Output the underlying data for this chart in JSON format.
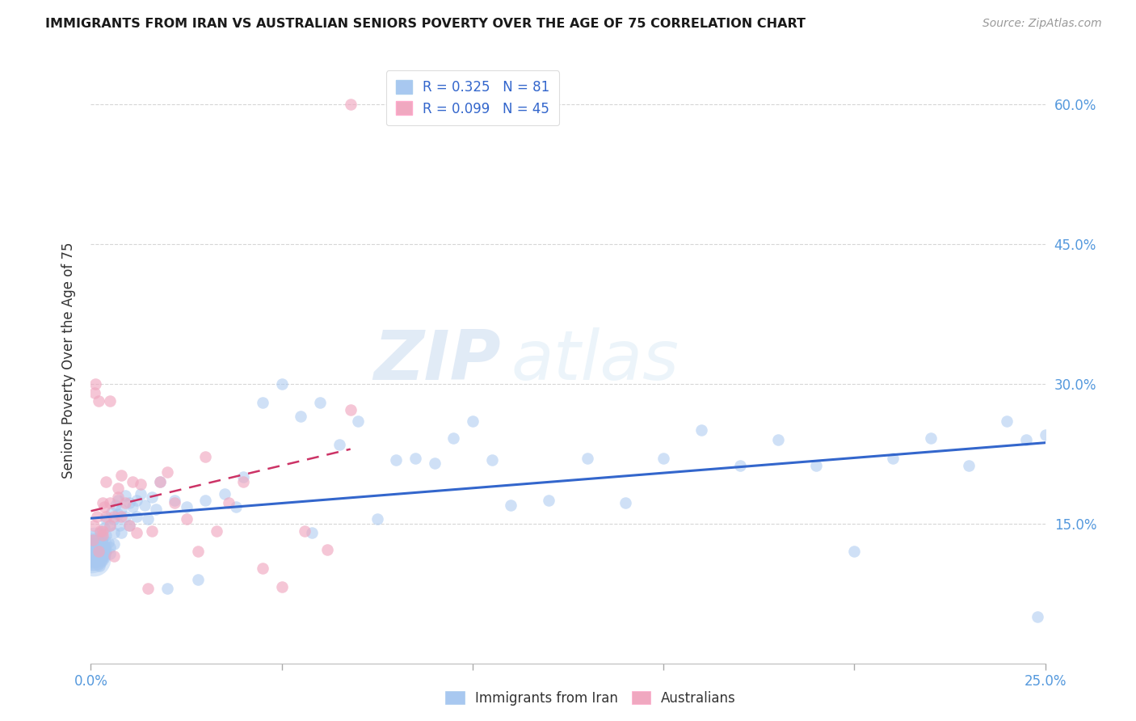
{
  "title": "IMMIGRANTS FROM IRAN VS AUSTRALIAN SENIORS POVERTY OVER THE AGE OF 75 CORRELATION CHART",
  "source": "Source: ZipAtlas.com",
  "ylabel_label": "Seniors Poverty Over the Age of 75",
  "legend_label1": "Immigrants from Iran",
  "legend_label2": "Australians",
  "R1": 0.325,
  "N1": 81,
  "R2": 0.099,
  "N2": 45,
  "xmin": 0.0,
  "xmax": 0.25,
  "ymin": 0.0,
  "ymax": 0.65,
  "yticks": [
    0.15,
    0.3,
    0.45,
    0.6
  ],
  "ytick_labels": [
    "15.0%",
    "30.0%",
    "45.0%",
    "60.0%"
  ],
  "xticks": [
    0.0,
    0.05,
    0.1,
    0.15,
    0.2,
    0.25
  ],
  "xtick_labels": [
    "0.0%",
    "",
    "",
    "",
    "",
    "25.0%"
  ],
  "color_blue": "#A8C8F0",
  "color_pink": "#F0A8C0",
  "line_blue": "#3366CC",
  "line_pink": "#CC3366",
  "watermark_zip": "ZIP",
  "watermark_atlas": "atlas",
  "background_color": "#FFFFFF",
  "grid_color": "#CCCCCC",
  "blue_scatter_x": [
    0.0008,
    0.001,
    0.0012,
    0.0015,
    0.002,
    0.002,
    0.0022,
    0.0025,
    0.003,
    0.003,
    0.0032,
    0.0035,
    0.004,
    0.004,
    0.004,
    0.0045,
    0.005,
    0.005,
    0.005,
    0.0055,
    0.006,
    0.006,
    0.006,
    0.0065,
    0.007,
    0.007,
    0.0075,
    0.008,
    0.008,
    0.009,
    0.009,
    0.01,
    0.01,
    0.011,
    0.012,
    0.012,
    0.013,
    0.014,
    0.015,
    0.016,
    0.017,
    0.018,
    0.02,
    0.022,
    0.025,
    0.028,
    0.03,
    0.035,
    0.038,
    0.04,
    0.045,
    0.05,
    0.055,
    0.058,
    0.06,
    0.065,
    0.07,
    0.075,
    0.08,
    0.085,
    0.09,
    0.095,
    0.1,
    0.105,
    0.11,
    0.12,
    0.13,
    0.14,
    0.15,
    0.16,
    0.17,
    0.18,
    0.19,
    0.2,
    0.21,
    0.22,
    0.23,
    0.24,
    0.245,
    0.248,
    0.25
  ],
  "blue_scatter_y": [
    0.115,
    0.12,
    0.11,
    0.125,
    0.13,
    0.118,
    0.105,
    0.14,
    0.135,
    0.115,
    0.125,
    0.145,
    0.138,
    0.12,
    0.155,
    0.13,
    0.148,
    0.125,
    0.118,
    0.162,
    0.14,
    0.155,
    0.128,
    0.17,
    0.16,
    0.175,
    0.148,
    0.165,
    0.14,
    0.158,
    0.18,
    0.172,
    0.148,
    0.168,
    0.175,
    0.158,
    0.182,
    0.17,
    0.155,
    0.178,
    0.165,
    0.195,
    0.08,
    0.175,
    0.168,
    0.09,
    0.175,
    0.182,
    0.168,
    0.2,
    0.28,
    0.3,
    0.265,
    0.14,
    0.28,
    0.235,
    0.26,
    0.155,
    0.218,
    0.22,
    0.215,
    0.242,
    0.26,
    0.218,
    0.17,
    0.175,
    0.22,
    0.172,
    0.22,
    0.25,
    0.212,
    0.24,
    0.212,
    0.12,
    0.22,
    0.242,
    0.212,
    0.26,
    0.24,
    0.05,
    0.245
  ],
  "pink_scatter_x": [
    0.0005,
    0.0008,
    0.001,
    0.0012,
    0.0015,
    0.002,
    0.002,
    0.0025,
    0.003,
    0.003,
    0.003,
    0.0035,
    0.004,
    0.004,
    0.005,
    0.005,
    0.005,
    0.006,
    0.006,
    0.007,
    0.007,
    0.008,
    0.008,
    0.009,
    0.01,
    0.011,
    0.012,
    0.013,
    0.015,
    0.016,
    0.018,
    0.02,
    0.022,
    0.025,
    0.028,
    0.03,
    0.033,
    0.036,
    0.04,
    0.045,
    0.05,
    0.056,
    0.062,
    0.068,
    0.068
  ],
  "pink_scatter_y": [
    0.132,
    0.148,
    0.29,
    0.3,
    0.158,
    0.12,
    0.282,
    0.142,
    0.142,
    0.172,
    0.138,
    0.168,
    0.195,
    0.158,
    0.172,
    0.148,
    0.282,
    0.158,
    0.115,
    0.188,
    0.178,
    0.202,
    0.158,
    0.172,
    0.148,
    0.195,
    0.14,
    0.192,
    0.08,
    0.142,
    0.195,
    0.205,
    0.172,
    0.155,
    0.12,
    0.222,
    0.142,
    0.172,
    0.195,
    0.102,
    0.082,
    0.142,
    0.122,
    0.272,
    0.6
  ],
  "big_cluster_x": [
    0.0002,
    0.0003,
    0.0004,
    0.0005,
    0.0006,
    0.0007,
    0.0008,
    0.0009,
    0.001
  ],
  "big_cluster_y": [
    0.115,
    0.118,
    0.12,
    0.122,
    0.125,
    0.118,
    0.112,
    0.128,
    0.12
  ]
}
